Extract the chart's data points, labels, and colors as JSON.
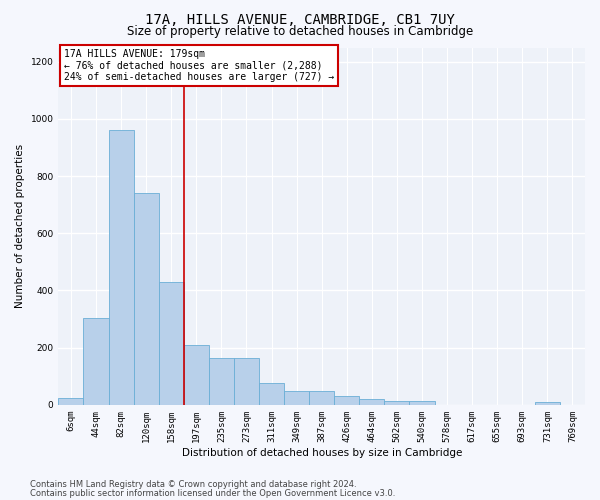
{
  "title_line1": "17A, HILLS AVENUE, CAMBRIDGE, CB1 7UY",
  "title_line2": "Size of property relative to detached houses in Cambridge",
  "xlabel": "Distribution of detached houses by size in Cambridge",
  "ylabel": "Number of detached properties",
  "categories": [
    "6sqm",
    "44sqm",
    "82sqm",
    "120sqm",
    "158sqm",
    "197sqm",
    "235sqm",
    "273sqm",
    "311sqm",
    "349sqm",
    "387sqm",
    "426sqm",
    "464sqm",
    "502sqm",
    "540sqm",
    "578sqm",
    "617sqm",
    "655sqm",
    "693sqm",
    "731sqm",
    "769sqm"
  ],
  "values": [
    25,
    305,
    960,
    740,
    430,
    210,
    165,
    165,
    75,
    50,
    50,
    30,
    20,
    15,
    15,
    0,
    0,
    0,
    0,
    10,
    0
  ],
  "bar_color": "#b8d0ea",
  "bar_edge_color": "#6aaed6",
  "red_line_x": 4.5,
  "annotation_text": "17A HILLS AVENUE: 179sqm\n← 76% of detached houses are smaller (2,288)\n24% of semi-detached houses are larger (727) →",
  "annotation_box_color": "#ffffff",
  "annotation_box_edge": "#cc0000",
  "ylim": [
    0,
    1250
  ],
  "yticks": [
    0,
    200,
    400,
    600,
    800,
    1000,
    1200
  ],
  "background_color": "#eef2f9",
  "grid_color": "#ffffff",
  "footer_line1": "Contains HM Land Registry data © Crown copyright and database right 2024.",
  "footer_line2": "Contains public sector information licensed under the Open Government Licence v3.0.",
  "title_fontsize": 10,
  "subtitle_fontsize": 8.5,
  "axis_label_fontsize": 7.5,
  "tick_fontsize": 6.5,
  "annotation_fontsize": 7,
  "footer_fontsize": 6
}
